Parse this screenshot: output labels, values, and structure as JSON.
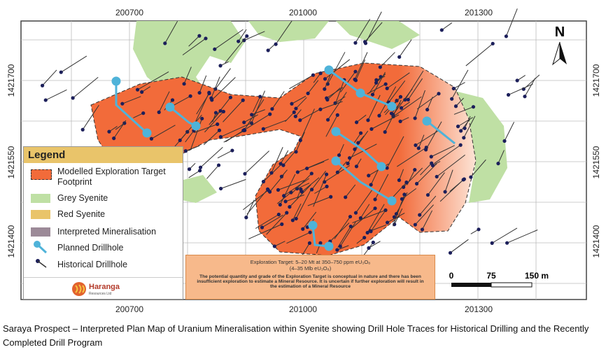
{
  "map": {
    "grid_labels": {
      "top": [
        200700,
        201000,
        201300
      ],
      "bottom": [
        200700,
        201000,
        201300
      ],
      "left": [
        1421700,
        1421550,
        1421400
      ],
      "right": [
        1421700,
        1421550,
        1421400
      ]
    },
    "north": "N",
    "legend": {
      "title": "Legend",
      "items": [
        "Modelled Exploration Target Footprint",
        "Grey Syenite",
        "Red Syenite",
        "Interpreted Mineralisation",
        "Planned Drillhole",
        "Historical Drillhole"
      ]
    },
    "logo": {
      "name": "Haranga",
      "tagline": "Resources Ltd"
    },
    "scale_bar": {
      "labels": [
        "0",
        "75",
        "150 m"
      ]
    },
    "exploration_target": {
      "headline": "Exploration Target: 5–20 Mt at 350–750 ppm eU₃O₈",
      "subline": "(4–35 Mlb eU₃O₈)",
      "note": "The potential quantity and grade of the Exploration Target is conceptual in nature and there has been insufficient exploration to estimate a Mineral Resource. It is uncertain if further exploration will result in the estimation of a Mineral Resource"
    }
  },
  "caption": "Saraya Prospect – Interpreted Plan Map of Uranium Mineralisation within Syenite showing Drill Hole Traces for Historical Drilling and the Recently Completed Drill Program"
}
